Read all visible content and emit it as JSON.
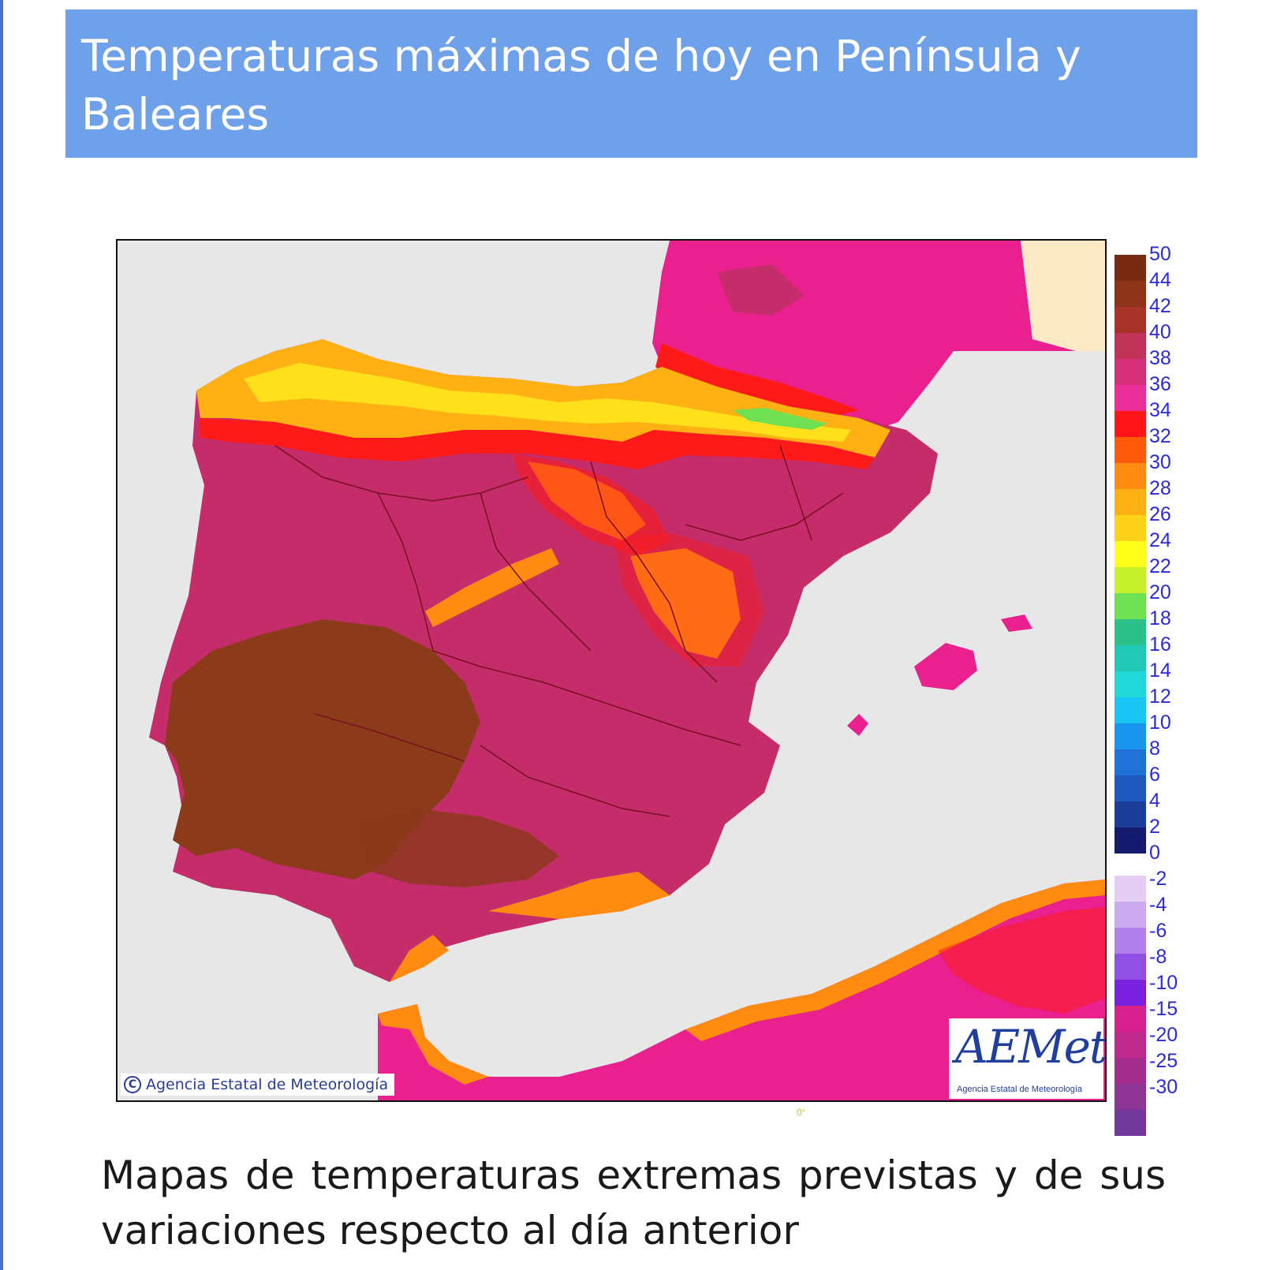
{
  "header": {
    "title": "Temperaturas máximas de hoy en Península y Baleares"
  },
  "map": {
    "copyright": "Agencia Estatal de Meteorología",
    "logo_word": "AEMet",
    "logo_sub": "Agencia Estatal de Meteorología",
    "copyright_symbol": "C",
    "meridian_label": "0°",
    "palette": {
      "sea": "#e7e7e7",
      "land_france": "#e9208e",
      "hot": "#8b3a1a",
      "mid": "#c42c6a",
      "orange": "#ff9a10",
      "yellow": "#ffe01a",
      "red": "#ff1a1a"
    }
  },
  "legend": {
    "labels": [
      "50",
      "44",
      "42",
      "40",
      "38",
      "36",
      "34",
      "32",
      "30",
      "28",
      "26",
      "24",
      "22",
      "20",
      "18",
      "16",
      "14",
      "12",
      "10",
      "8",
      "6",
      "4",
      "2",
      "0",
      "-2",
      "-4",
      "-6",
      "-8",
      "-10",
      "-15",
      "-20",
      "-25",
      "-30"
    ],
    "colors_top": [
      "#7a2a10",
      "#8c3318",
      "#a8322a",
      "#c2335a",
      "#d62f78",
      "#ea2e98",
      "#ff1418",
      "#ff5a0a",
      "#ff8c10",
      "#ffb012",
      "#ffd21a",
      "#ffff1a",
      "#c6f02a",
      "#6ee052",
      "#2cc08a",
      "#22c8b6",
      "#20d8d8",
      "#18c4f4",
      "#1a96f0",
      "#1e72d8",
      "#1e58c0",
      "#1c3c9a",
      "#151c70"
    ],
    "colors_bottom": [
      "#e4cef4",
      "#ccaaf0",
      "#b080ea",
      "#9050e6",
      "#7a22e0",
      "#d8208c",
      "#c02a8c",
      "#a42c8c",
      "#8e3494",
      "#72399c"
    ]
  },
  "caption": "Mapas de temperaturas extremas previstas y de sus variaciones respecto al día anterior"
}
